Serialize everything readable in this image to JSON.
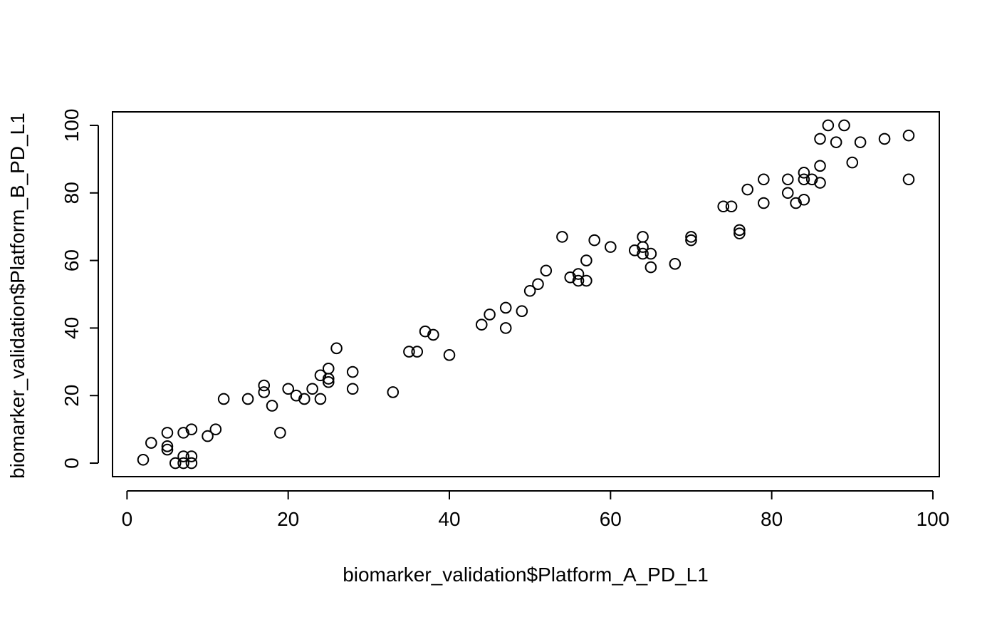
{
  "chart_data": {
    "type": "scatter",
    "title": "",
    "xlabel": "biomarker_validation$Platform_A_PD_L1",
    "ylabel": "biomarker_validation$Platform_B_PD_L1",
    "xlim": [
      -1.8,
      100.8
    ],
    "ylim": [
      -4,
      104
    ],
    "xticks": [
      0,
      20,
      40,
      60,
      80,
      100
    ],
    "yticks": [
      0,
      20,
      40,
      60,
      80,
      100
    ],
    "grid": false,
    "legend": "none",
    "marker": "open-circle",
    "colors": {
      "point": "#000000",
      "axis": "#000000",
      "background": "#ffffff"
    },
    "points": [
      [
        2,
        1
      ],
      [
        3,
        6
      ],
      [
        5,
        9
      ],
      [
        5,
        5
      ],
      [
        5,
        4
      ],
      [
        6,
        0
      ],
      [
        7,
        2
      ],
      [
        7,
        0
      ],
      [
        7,
        9
      ],
      [
        8,
        10
      ],
      [
        8,
        2
      ],
      [
        8,
        0
      ],
      [
        10,
        8
      ],
      [
        11,
        10
      ],
      [
        12,
        19
      ],
      [
        15,
        19
      ],
      [
        17,
        23
      ],
      [
        17,
        21
      ],
      [
        18,
        17
      ],
      [
        19,
        9
      ],
      [
        20,
        22
      ],
      [
        21,
        20
      ],
      [
        22,
        19
      ],
      [
        23,
        22
      ],
      [
        24,
        26
      ],
      [
        24,
        19
      ],
      [
        25,
        28
      ],
      [
        25,
        25
      ],
      [
        25,
        24
      ],
      [
        26,
        34
      ],
      [
        28,
        27
      ],
      [
        28,
        22
      ],
      [
        33,
        21
      ],
      [
        35,
        33
      ],
      [
        36,
        33
      ],
      [
        37,
        39
      ],
      [
        38,
        38
      ],
      [
        40,
        32
      ],
      [
        44,
        41
      ],
      [
        45,
        44
      ],
      [
        47,
        46
      ],
      [
        47,
        40
      ],
      [
        49,
        45
      ],
      [
        50,
        51
      ],
      [
        51,
        53
      ],
      [
        52,
        57
      ],
      [
        54,
        67
      ],
      [
        55,
        55
      ],
      [
        56,
        56
      ],
      [
        56,
        54
      ],
      [
        57,
        60
      ],
      [
        57,
        54
      ],
      [
        58,
        66
      ],
      [
        60,
        64
      ],
      [
        63,
        63
      ],
      [
        64,
        67
      ],
      [
        64,
        64
      ],
      [
        64,
        62
      ],
      [
        65,
        62
      ],
      [
        65,
        58
      ],
      [
        68,
        59
      ],
      [
        70,
        67
      ],
      [
        70,
        66
      ],
      [
        74,
        76
      ],
      [
        75,
        76
      ],
      [
        76,
        69
      ],
      [
        76,
        68
      ],
      [
        77,
        81
      ],
      [
        79,
        84
      ],
      [
        79,
        77
      ],
      [
        82,
        84
      ],
      [
        82,
        80
      ],
      [
        83,
        77
      ],
      [
        84,
        86
      ],
      [
        84,
        84
      ],
      [
        84,
        78
      ],
      [
        85,
        84
      ],
      [
        86,
        96
      ],
      [
        86,
        88
      ],
      [
        86,
        83
      ],
      [
        87,
        100
      ],
      [
        88,
        95
      ],
      [
        89,
        100
      ],
      [
        90,
        89
      ],
      [
        91,
        95
      ],
      [
        94,
        96
      ],
      [
        97,
        97
      ],
      [
        97,
        84
      ]
    ]
  }
}
